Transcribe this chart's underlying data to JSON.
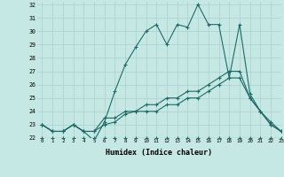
{
  "title": "",
  "xlabel": "Humidex (Indice chaleur)",
  "ylabel": "",
  "background_color": "#c5e8e5",
  "grid_color": "#a8d0cd",
  "line_color": "#1e6b65",
  "xlim": [
    -0.5,
    23
  ],
  "ylim": [
    22,
    32.2
  ],
  "yticks": [
    22,
    23,
    24,
    25,
    26,
    27,
    28,
    29,
    30,
    31,
    32
  ],
  "xticks": [
    0,
    1,
    2,
    3,
    4,
    5,
    6,
    7,
    8,
    9,
    10,
    11,
    12,
    13,
    14,
    15,
    16,
    17,
    18,
    19,
    20,
    21,
    22,
    23
  ],
  "series": [
    [
      23,
      22.5,
      22.5,
      23,
      22.5,
      21.8,
      23.2,
      25.5,
      27.5,
      28.8,
      30,
      30.5,
      29,
      30.5,
      30.3,
      32,
      30.5,
      30.5,
      26.5,
      30.5,
      25.3,
      24,
      23.2,
      22.5
    ],
    [
      23,
      22.5,
      22.5,
      23,
      22.5,
      22.5,
      23,
      23.2,
      23.8,
      24,
      24,
      24,
      24.5,
      24.5,
      25,
      25,
      25.5,
      26,
      26.5,
      26.5,
      25,
      24,
      23,
      22.5
    ],
    [
      23,
      22.5,
      22.5,
      23,
      22.5,
      22.5,
      23.5,
      23.5,
      24,
      24,
      24.5,
      24.5,
      25,
      25,
      25.5,
      25.5,
      26,
      26.5,
      27,
      27,
      25,
      24,
      23,
      22.5
    ],
    [
      22,
      22,
      22,
      22,
      22,
      22,
      22,
      22,
      22,
      22,
      22,
      22,
      22,
      22,
      22,
      22,
      22,
      22,
      22,
      22,
      22,
      22,
      22,
      22
    ]
  ]
}
